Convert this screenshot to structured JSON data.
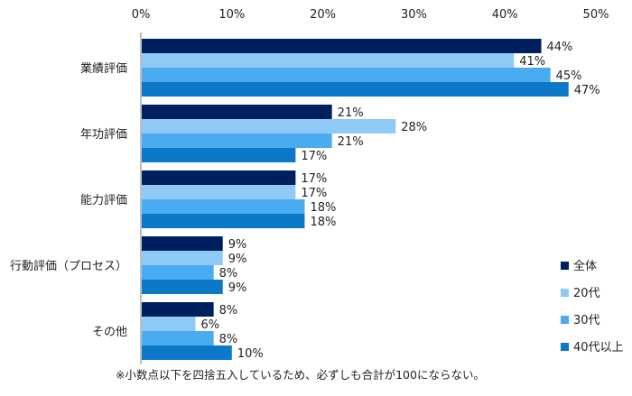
{
  "chart_data": {
    "type": "bar",
    "orientation": "horizontal",
    "categories": [
      "業績評価",
      "年功評価",
      "能力評価",
      "行動評価（プロセス）",
      "その他"
    ],
    "series": [
      {
        "name": "全体",
        "color": "#001f5e",
        "values": [
          44,
          21,
          17,
          9,
          8
        ]
      },
      {
        "name": "20代",
        "color": "#8ecaf5",
        "values": [
          41,
          28,
          17,
          9,
          6
        ]
      },
      {
        "name": "30代",
        "color": "#4aabf0",
        "values": [
          45,
          21,
          18,
          8,
          8
        ]
      },
      {
        "name": "40代以上",
        "color": "#0c78c8",
        "values": [
          47,
          17,
          18,
          9,
          10
        ]
      }
    ],
    "xlim": [
      0,
      50
    ],
    "xticks": [
      "0%",
      "10%",
      "20%",
      "30%",
      "40%",
      "50%"
    ],
    "value_suffix": "%",
    "grid": false,
    "legend": "bottom-right"
  },
  "footnote": "※小数点以下を四捨五入しているため、必ずしも合計が100にならない。"
}
